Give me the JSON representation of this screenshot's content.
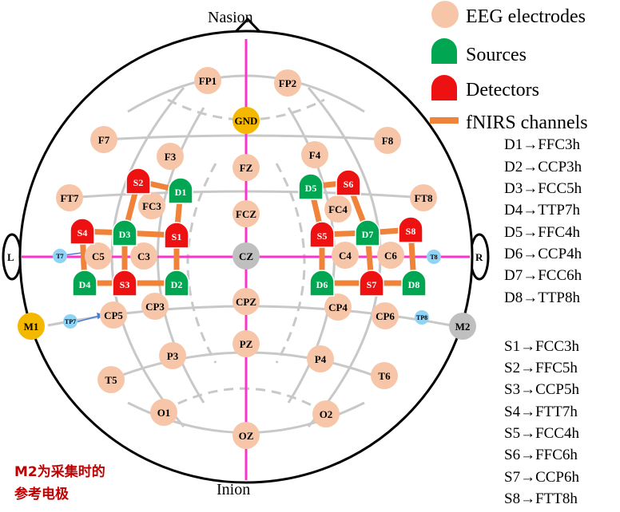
{
  "labels": {
    "nasion": "Nasion",
    "inion": "Inion",
    "left": "L",
    "right": "R"
  },
  "legend": [
    {
      "label": "EEG electrodes",
      "kind": "electrode",
      "color": "#f7c6a9"
    },
    {
      "label": "Sources",
      "kind": "source",
      "color": "#00a651"
    },
    {
      "label": "Detectors",
      "kind": "detector",
      "color": "#ee1111"
    },
    {
      "label": "fNIRS channels",
      "kind": "channel",
      "color": "#f0833a"
    }
  ],
  "colors": {
    "electrode": "#f7c6a9",
    "ground": "#f5b800",
    "reference": "#bfbfbf",
    "small_electrode": "#8fd3f7",
    "source": "#00a651",
    "detector": "#ee1111",
    "channel": "#f0833a",
    "midline": "#ff33cc",
    "grid": "#c8c8c8",
    "note": "#c00000"
  },
  "electrodes": [
    "FP1",
    "FP2",
    "GND",
    "F7",
    "F3",
    "FZ",
    "F4",
    "F8",
    "FT7",
    "FC3",
    "FCZ",
    "FC4",
    "FT8",
    "T7",
    "C5",
    "C3",
    "CZ",
    "C4",
    "C6",
    "T8",
    "M1",
    "TP7",
    "CP5",
    "CP3",
    "CPZ",
    "CP4",
    "CP6",
    "TP8",
    "M2",
    "P3",
    "PZ",
    "P4",
    "T5",
    "T6",
    "O1",
    "OZ",
    "O2"
  ],
  "sources": [
    "D1",
    "D2",
    "D3",
    "D4",
    "D5",
    "D6",
    "D7",
    "D8"
  ],
  "detectors": [
    "S1",
    "S2",
    "S3",
    "S4",
    "S5",
    "S6",
    "S7",
    "S8"
  ],
  "source_mapping": [
    "D1→FFC3h",
    "D2→CCP3h",
    "D3→FCC5h",
    "D4→TTP7h",
    "D5→FFC4h",
    "D6→CCP4h",
    "D7→FCC6h",
    "D8→TTP8h"
  ],
  "detector_mapping": [
    "S1→FCC3h",
    "S2→FFC5h",
    "S3→CCP5h",
    "S4→FTT7h",
    "S5→FCC4h",
    "S6→FFC6h",
    "S7→CCP6h",
    "S8→FTT8h"
  ],
  "note": [
    "M2为采集时的",
    "参考电极"
  ]
}
